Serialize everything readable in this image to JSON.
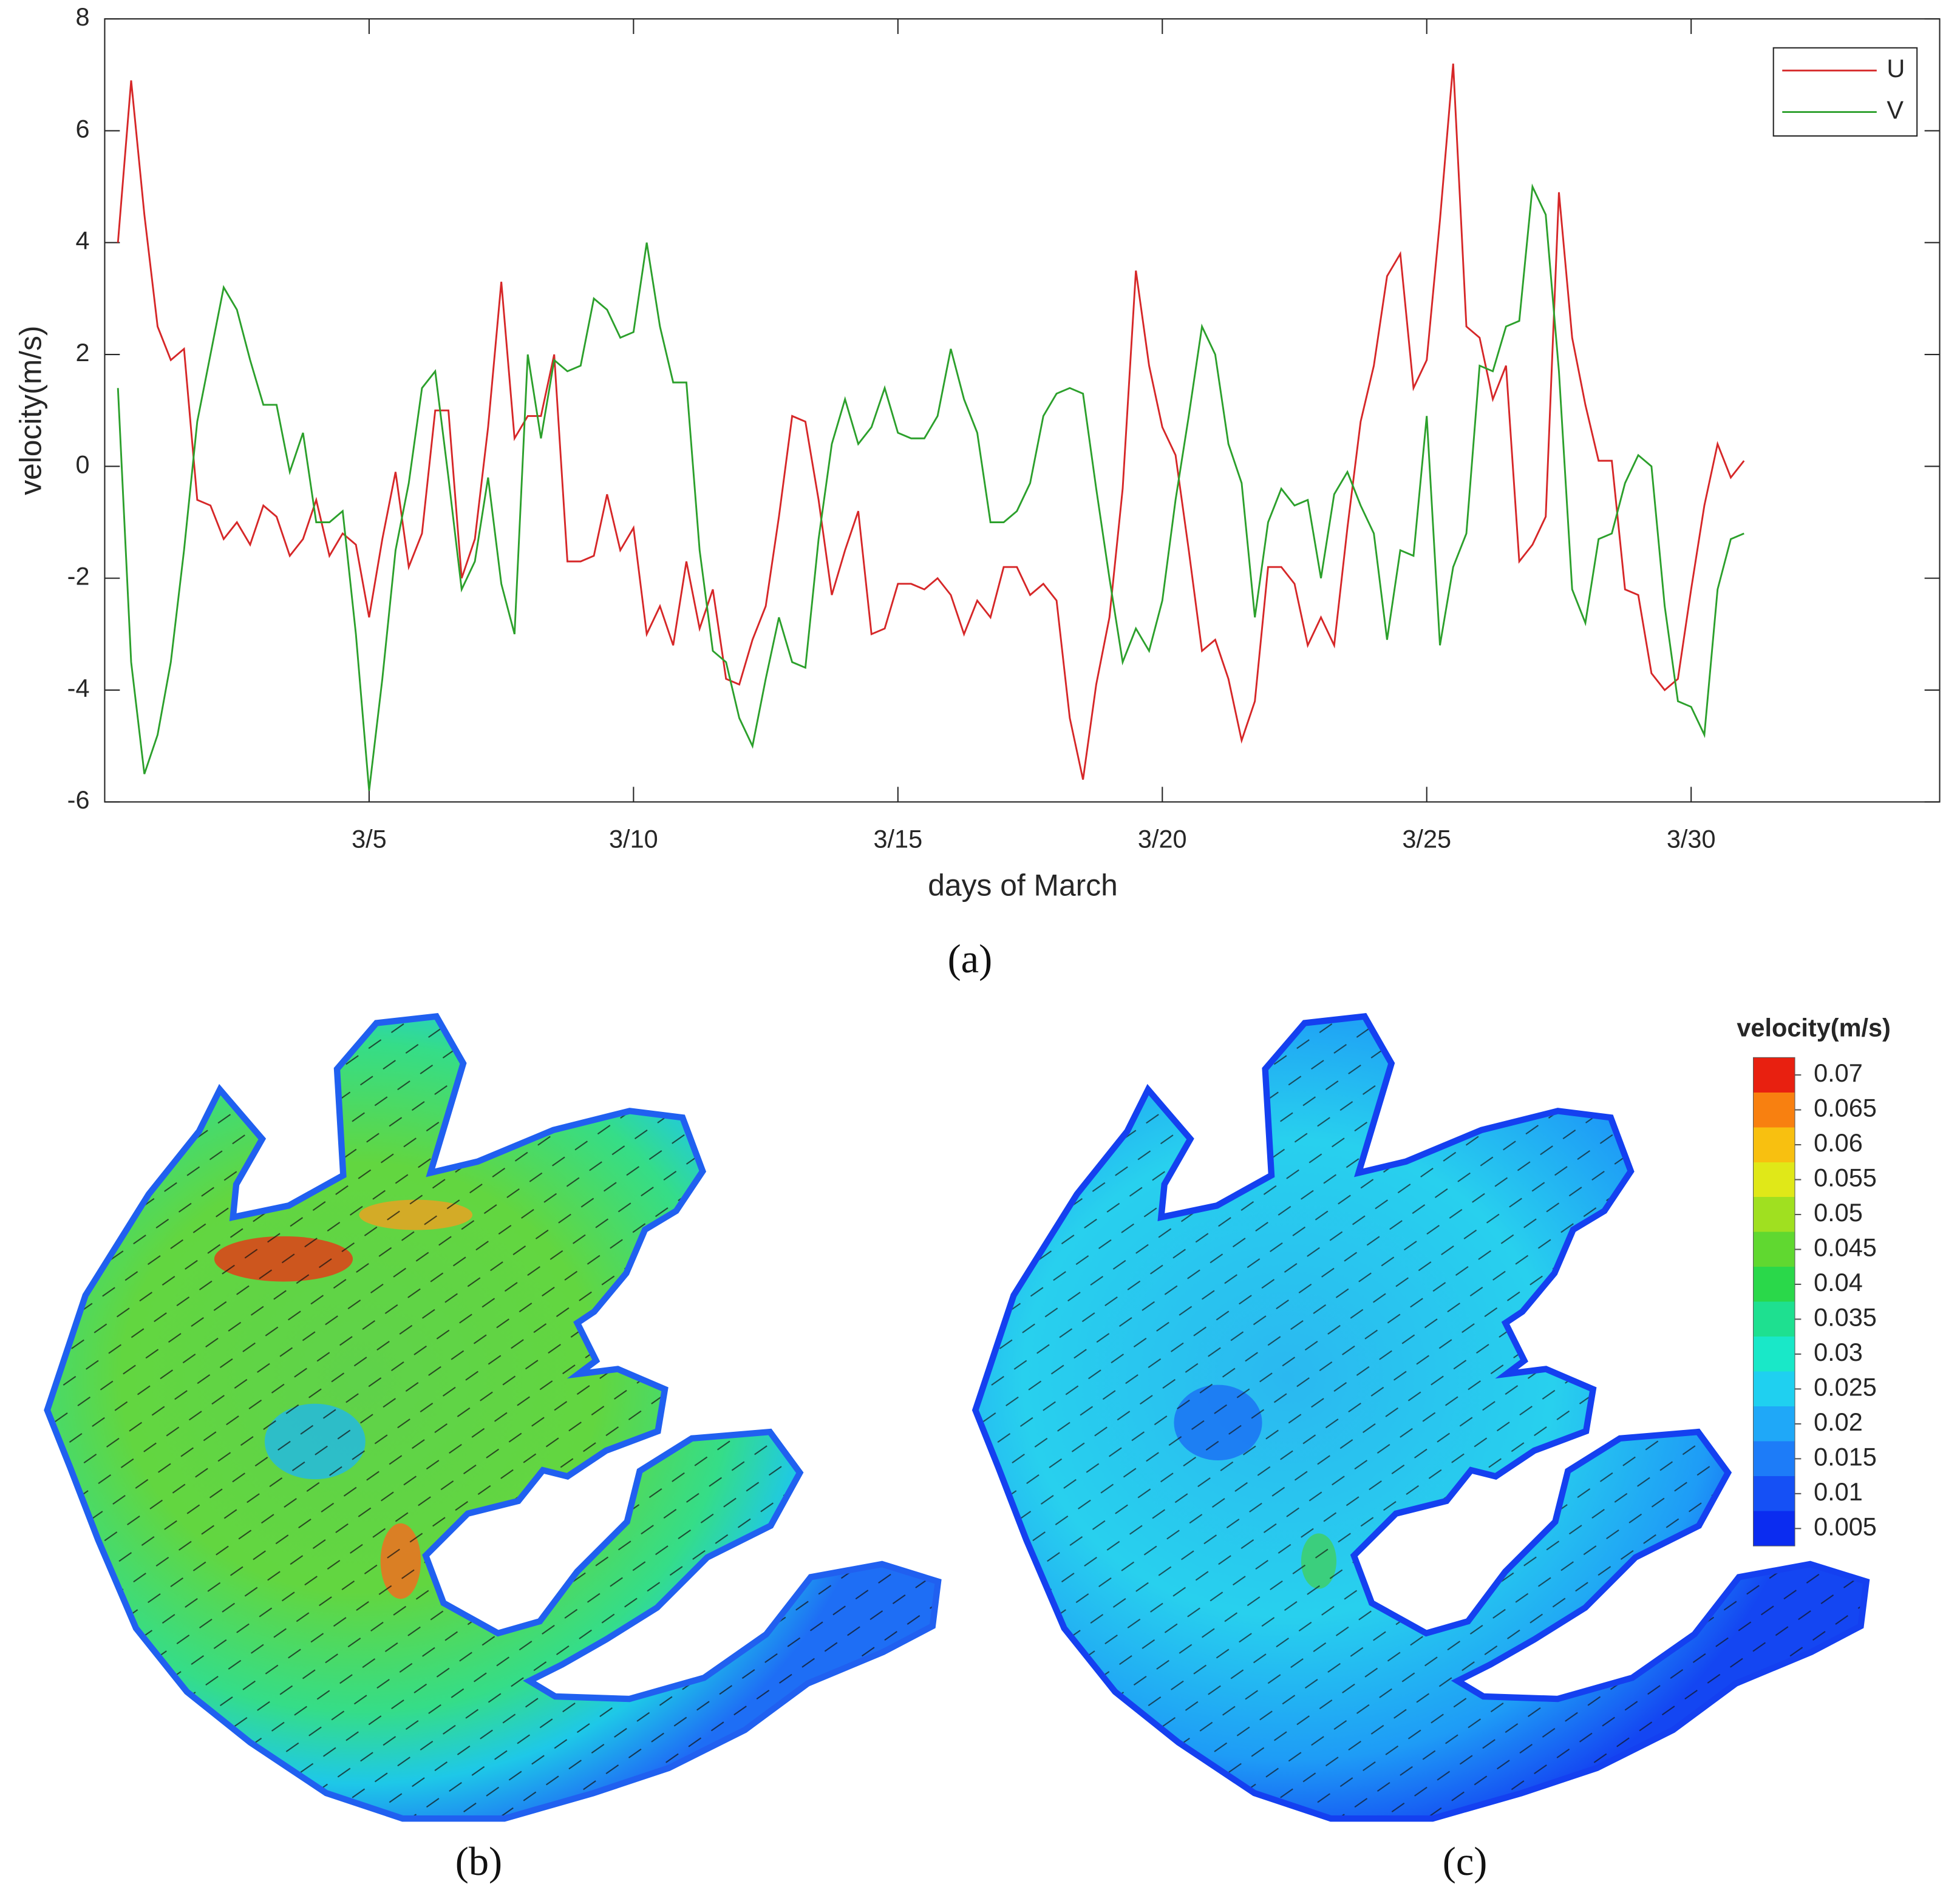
{
  "chart_data": {
    "type": "line",
    "xlabel": "days of March",
    "ylabel": "velocity(m/s)",
    "x": [
      0.25,
      0.5,
      0.75,
      1,
      1.25,
      1.5,
      1.75,
      2,
      2.25,
      2.5,
      2.75,
      3,
      3.25,
      3.5,
      3.75,
      4,
      4.25,
      4.5,
      4.75,
      5,
      5.25,
      5.5,
      5.75,
      6,
      6.25,
      6.5,
      6.75,
      7,
      7.25,
      7.5,
      7.75,
      8,
      8.25,
      8.5,
      8.75,
      9,
      9.25,
      9.5,
      9.75,
      10,
      10.25,
      10.5,
      10.75,
      11,
      11.25,
      11.5,
      11.75,
      12,
      12.25,
      12.5,
      12.75,
      13,
      13.25,
      13.5,
      13.75,
      14,
      14.25,
      14.5,
      14.75,
      15,
      15.25,
      15.5,
      15.75,
      16,
      16.25,
      16.5,
      16.75,
      17,
      17.25,
      17.5,
      17.75,
      18,
      18.25,
      18.5,
      18.75,
      19,
      19.25,
      19.5,
      19.75,
      20,
      20.25,
      20.5,
      20.75,
      21,
      21.25,
      21.5,
      21.75,
      22,
      22.25,
      22.5,
      22.75,
      23,
      23.25,
      23.5,
      23.75,
      24,
      24.25,
      24.5,
      24.75,
      25,
      25.25,
      25.5,
      25.75,
      26,
      26.25,
      26.5,
      26.75,
      27,
      27.25,
      27.5,
      27.75,
      28,
      28.25,
      28.5,
      28.75,
      29,
      29.25,
      29.5,
      29.75,
      30,
      30.25,
      30.5,
      30.75,
      31
    ],
    "series": [
      {
        "name": "U",
        "color": "#d62728",
        "values": [
          4.0,
          6.9,
          4.5,
          2.5,
          1.9,
          2.1,
          -0.6,
          -0.7,
          -1.3,
          -1.0,
          -1.4,
          -0.7,
          -0.9,
          -1.6,
          -1.3,
          -0.6,
          -1.6,
          -1.2,
          -1.4,
          -2.7,
          -1.3,
          -0.1,
          -1.8,
          -1.2,
          1.0,
          1.0,
          -2.0,
          -1.3,
          0.7,
          3.3,
          0.5,
          0.9,
          0.9,
          2.0,
          -1.7,
          -1.7,
          -1.6,
          -0.5,
          -1.5,
          -1.1,
          -3.0,
          -2.5,
          -3.2,
          -1.7,
          -2.9,
          -2.2,
          -3.8,
          -3.9,
          -3.1,
          -2.5,
          -0.9,
          0.9,
          0.8,
          -0.6,
          -2.3,
          -1.5,
          -0.8,
          -3.0,
          -2.9,
          -2.1,
          -2.1,
          -2.2,
          -2.0,
          -2.3,
          -3.0,
          -2.4,
          -2.7,
          -1.8,
          -1.8,
          -2.3,
          -2.1,
          -2.4,
          -4.5,
          -5.6,
          -3.9,
          -2.7,
          -0.4,
          3.5,
          1.8,
          0.7,
          0.2,
          -1.5,
          -3.3,
          -3.1,
          -3.8,
          -4.9,
          -4.2,
          -1.8,
          -1.8,
          -2.1,
          -3.2,
          -2.7,
          -3.2,
          -1.1,
          0.8,
          1.8,
          3.4,
          3.8,
          1.4,
          1.9,
          4.4,
          7.2,
          2.5,
          2.3,
          1.2,
          1.8,
          -1.7,
          -1.4,
          -0.9,
          4.9,
          2.3,
          1.1,
          0.1,
          0.1,
          -2.2,
          -2.3,
          -3.7,
          -4.0,
          -3.8,
          -2.2,
          -0.7,
          0.4,
          -0.2,
          0.1
        ]
      },
      {
        "name": "V",
        "color": "#2ca02c",
        "values": [
          1.4,
          -3.5,
          -5.5,
          -4.8,
          -3.5,
          -1.5,
          0.8,
          2.0,
          3.2,
          2.8,
          1.9,
          1.1,
          1.1,
          -0.1,
          0.6,
          -1.0,
          -1.0,
          -0.8,
          -3.0,
          -5.8,
          -3.8,
          -1.5,
          -0.3,
          1.4,
          1.7,
          -0.2,
          -2.2,
          -1.7,
          -0.2,
          -2.1,
          -3.0,
          2.0,
          0.5,
          1.9,
          1.7,
          1.8,
          3.0,
          2.8,
          2.3,
          2.4,
          4.0,
          2.5,
          1.5,
          1.5,
          -1.5,
          -3.3,
          -3.5,
          -4.5,
          -5.0,
          -3.8,
          -2.7,
          -3.5,
          -3.6,
          -1.3,
          0.4,
          1.2,
          0.4,
          0.7,
          1.4,
          0.6,
          0.5,
          0.5,
          0.9,
          2.1,
          1.2,
          0.6,
          -1.0,
          -1.0,
          -0.8,
          -0.3,
          0.9,
          1.3,
          1.4,
          1.3,
          -0.4,
          -2.0,
          -3.5,
          -2.9,
          -3.3,
          -2.4,
          -0.6,
          0.9,
          2.5,
          2.0,
          0.4,
          -0.3,
          -2.7,
          -1.0,
          -0.4,
          -0.7,
          -0.6,
          -2.0,
          -0.5,
          -0.1,
          -0.7,
          -1.2,
          -3.1,
          -1.5,
          -1.6,
          0.9,
          -3.2,
          -1.8,
          -1.2,
          1.8,
          1.7,
          2.5,
          2.6,
          5.0,
          4.5,
          1.7,
          -2.2,
          -2.8,
          -1.3,
          -1.2,
          -0.3,
          0.2,
          0.0,
          -2.5,
          -4.2,
          -4.3,
          -4.8,
          -2.2,
          -1.3,
          -1.2
        ]
      }
    ],
    "xlim": [
      0,
      34.7
    ],
    "ylim": [
      -6,
      8
    ],
    "xticks": [
      {
        "value": 5,
        "label": "3/5"
      },
      {
        "value": 10,
        "label": "3/10"
      },
      {
        "value": 15,
        "label": "3/15"
      },
      {
        "value": 20,
        "label": "3/20"
      },
      {
        "value": 25,
        "label": "3/25"
      },
      {
        "value": 30,
        "label": "3/30"
      }
    ],
    "yticks": [
      -6,
      -4,
      -2,
      0,
      2,
      4,
      6,
      8
    ],
    "grid": false,
    "legend": "upper right"
  },
  "colorbar": {
    "title": "velocity(m/s)",
    "clim": [
      0.0025,
      0.0725
    ],
    "ticks": [
      0.07,
      0.065,
      0.06,
      0.055,
      0.05,
      0.045,
      0.04,
      0.035,
      0.03,
      0.025,
      0.02,
      0.015,
      0.01,
      0.005
    ],
    "colors": [
      "#0b2cf0",
      "#1550f5",
      "#1d7cf8",
      "#1fa8f8",
      "#1fd0f0",
      "#19e8c8",
      "#1ee090",
      "#2ad84a",
      "#60d830",
      "#a0e020",
      "#e0e818",
      "#f8c010",
      "#f88010",
      "#e82010"
    ]
  },
  "panel_labels": [
    "(a)",
    "(b)",
    "(c)"
  ]
}
